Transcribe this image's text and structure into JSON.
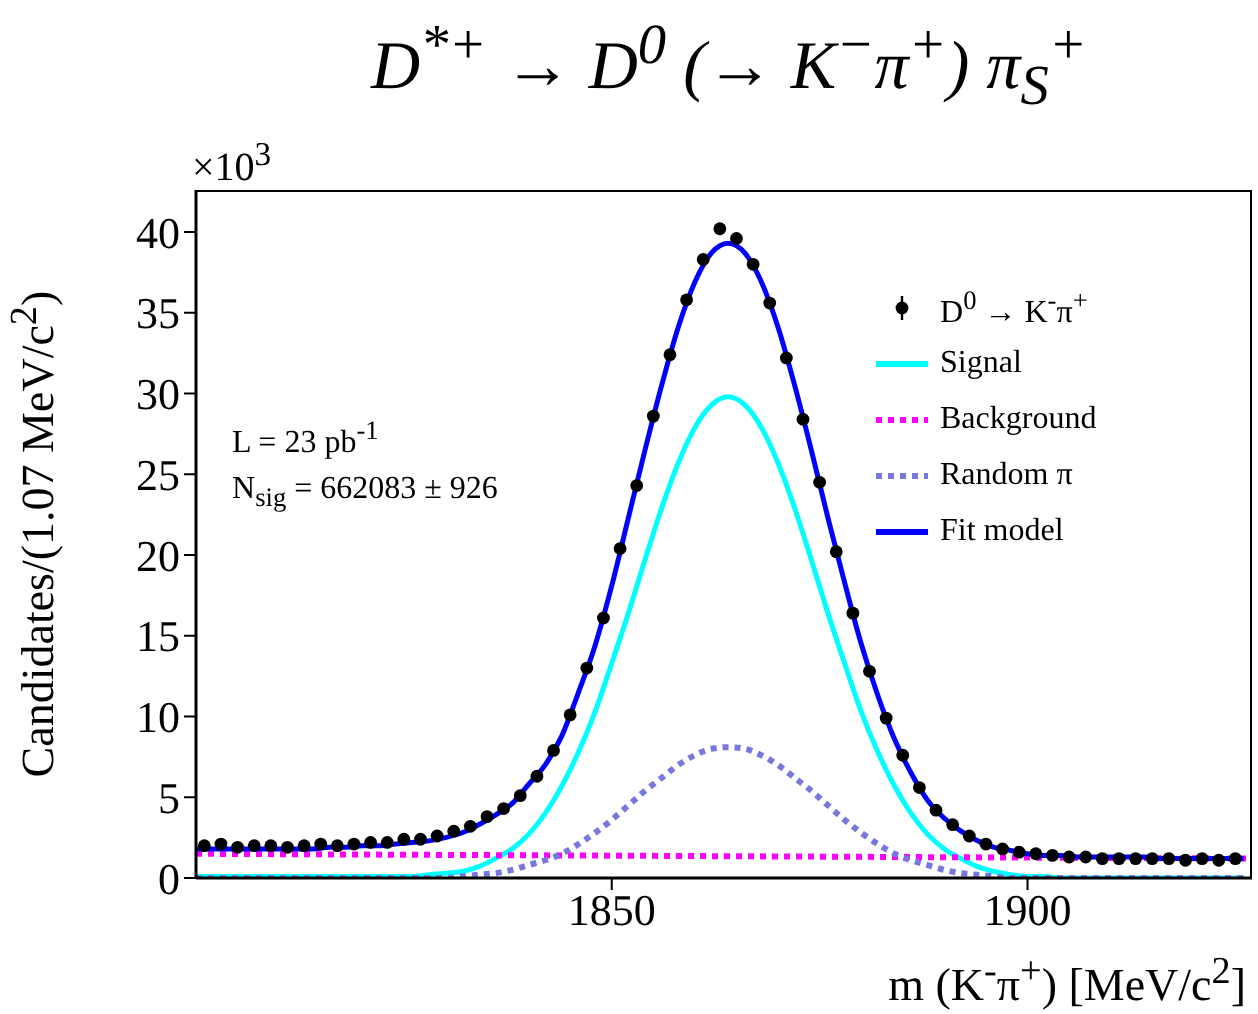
{
  "chart_data": {
    "type": "line",
    "title": "D$^{*+}$ → D$^{0}$ (→ K$^{−}$π$^{+}$) π$_{S}$$^{+}$",
    "xlabel": "m (K$^{-}$π$^{+}$) [MeV/c$^{2}$]",
    "ylabel": "Candidates/(1.07 MeV/c$^{2}$)",
    "xlim": [
      1800,
      1927
    ],
    "xticks": [
      1850,
      1900
    ],
    "ylim": [
      0,
      42.6
    ],
    "yticks": [
      0,
      5,
      10,
      15,
      20,
      25,
      30,
      35,
      40
    ],
    "grid": false,
    "legend": "top right",
    "annotations": [
      "×10$^{3}$",
      "L = 23 pb$^{-1}$",
      "N$_{sig}$ = 662083 ± 926"
    ],
    "series": [
      {
        "name": "D$^{0}$ → K$^{-}$π$^{+}$",
        "type": "scatter",
        "marker": "circle",
        "color": "#000000",
        "x": [
          1801,
          1803,
          1805,
          1807,
          1809,
          1811,
          1813,
          1815,
          1817,
          1819,
          1821,
          1823,
          1825,
          1827,
          1829,
          1831,
          1833,
          1835,
          1837,
          1839,
          1841,
          1843,
          1845,
          1847,
          1849,
          1851,
          1853,
          1855,
          1857,
          1859,
          1861,
          1863,
          1865,
          1867,
          1869,
          1871,
          1873,
          1875,
          1877,
          1879,
          1881,
          1883,
          1885,
          1887,
          1889,
          1891,
          1893,
          1895,
          1897,
          1899,
          1901,
          1903,
          1905,
          1907,
          1909,
          1911,
          1913,
          1915,
          1917,
          1919,
          1921,
          1923,
          1925
        ],
        "values": [
          2.0,
          2.1,
          1.9,
          2.0,
          2.0,
          1.9,
          2.0,
          2.1,
          2.0,
          2.1,
          2.2,
          2.2,
          2.4,
          2.4,
          2.6,
          2.9,
          3.2,
          3.8,
          4.3,
          5.1,
          6.3,
          7.9,
          10.1,
          13.0,
          16.1,
          20.4,
          24.3,
          28.6,
          32.4,
          35.8,
          38.3,
          40.2,
          39.6,
          38.0,
          35.6,
          32.2,
          28.4,
          24.5,
          20.2,
          16.4,
          12.8,
          9.9,
          7.6,
          5.6,
          4.2,
          3.3,
          2.6,
          2.1,
          1.8,
          1.6,
          1.5,
          1.4,
          1.3,
          1.3,
          1.2,
          1.2,
          1.2,
          1.2,
          1.2,
          1.1,
          1.2,
          1.1,
          1.2
        ]
      },
      {
        "name": "Signal",
        "color": "#00ffff",
        "line_style": "solid",
        "x": [
          1800,
          1802,
          1804,
          1806,
          1808,
          1810,
          1812,
          1814,
          1816,
          1818,
          1820,
          1822,
          1824,
          1826,
          1828,
          1830,
          1832,
          1834,
          1836,
          1838,
          1840,
          1842,
          1844,
          1846,
          1848,
          1850,
          1852,
          1854,
          1856,
          1858,
          1860,
          1862,
          1864,
          1866,
          1868,
          1870,
          1872,
          1874,
          1876,
          1878,
          1880,
          1882,
          1884,
          1886,
          1888,
          1890,
          1892,
          1894,
          1896,
          1898,
          1900,
          1902,
          1904,
          1906,
          1908,
          1910,
          1912,
          1914,
          1916,
          1918,
          1920,
          1922,
          1924,
          1926
        ],
        "values": [
          0.1,
          0.1,
          0.1,
          0.1,
          0.1,
          0.1,
          0.1,
          0.1,
          0.1,
          0.1,
          0.1,
          0.1,
          0.1,
          0.1,
          0.2,
          0.3,
          0.4,
          0.7,
          1.2,
          1.8,
          2.7,
          4.0,
          5.7,
          7.8,
          10.3,
          13.3,
          16.4,
          19.7,
          22.9,
          25.7,
          27.9,
          29.3,
          29.8,
          29.3,
          27.9,
          25.7,
          22.9,
          19.7,
          16.4,
          13.3,
          10.3,
          7.8,
          5.7,
          4.0,
          2.7,
          1.8,
          1.2,
          0.7,
          0.4,
          0.2,
          0.1,
          0.1,
          0,
          0,
          0,
          0,
          0,
          0,
          0,
          0,
          0,
          0,
          0,
          0
        ]
      },
      {
        "name": "Background",
        "color": "#ff00ff",
        "line_style": "dotted",
        "x": [
          1800,
          1927
        ],
        "values": [
          1.5,
          1.2
        ]
      },
      {
        "name": "Random π",
        "color": "#7777dd",
        "line_style": "dotted",
        "x": [
          1800,
          1802,
          1804,
          1806,
          1808,
          1810,
          1812,
          1814,
          1816,
          1818,
          1820,
          1822,
          1824,
          1826,
          1828,
          1830,
          1832,
          1834,
          1836,
          1838,
          1840,
          1842,
          1844,
          1846,
          1848,
          1850,
          1852,
          1854,
          1856,
          1858,
          1860,
          1862,
          1864,
          1866,
          1868,
          1870,
          1872,
          1874,
          1876,
          1878,
          1880,
          1882,
          1884,
          1886,
          1888,
          1890,
          1892,
          1894,
          1896,
          1898,
          1900,
          1902,
          1904,
          1906,
          1908,
          1910,
          1912,
          1914,
          1916,
          1918,
          1920,
          1922,
          1924,
          1926
        ],
        "values": [
          0,
          0,
          0,
          0,
          0,
          0,
          0,
          0,
          0,
          0,
          0,
          0,
          0,
          0,
          0,
          0,
          0.1,
          0.2,
          0.3,
          0.5,
          0.8,
          1.1,
          1.5,
          2.1,
          2.8,
          3.6,
          4.5,
          5.4,
          6.2,
          7.0,
          7.6,
          8.0,
          8.1,
          8.0,
          7.6,
          7.0,
          6.2,
          5.4,
          4.5,
          3.6,
          2.8,
          2.1,
          1.5,
          1.1,
          0.8,
          0.5,
          0.3,
          0.2,
          0.1,
          0,
          0,
          0,
          0,
          0,
          0,
          0,
          0,
          0,
          0,
          0,
          0,
          0,
          0,
          0
        ]
      },
      {
        "name": "Fit model",
        "color": "#0000ff",
        "line_style": "solid",
        "x": [
          1800,
          1802,
          1804,
          1806,
          1808,
          1810,
          1812,
          1814,
          1816,
          1818,
          1820,
          1822,
          1824,
          1826,
          1828,
          1830,
          1832,
          1834,
          1836,
          1838,
          1840,
          1842,
          1844,
          1846,
          1848,
          1850,
          1852,
          1854,
          1856,
          1858,
          1860,
          1862,
          1864,
          1866,
          1868,
          1870,
          1872,
          1874,
          1876,
          1878,
          1880,
          1882,
          1884,
          1886,
          1888,
          1890,
          1892,
          1894,
          1896,
          1898,
          1900,
          1902,
          1904,
          1906,
          1908,
          1910,
          1912,
          1914,
          1916,
          1918,
          1920,
          1922,
          1924,
          1926
        ],
        "values": [
          1.8,
          1.8,
          1.8,
          1.8,
          1.8,
          1.8,
          1.8,
          1.8,
          1.9,
          1.9,
          2.0,
          2.0,
          2.1,
          2.2,
          2.3,
          2.5,
          2.8,
          3.3,
          3.9,
          4.6,
          5.8,
          7.0,
          8.8,
          11.5,
          14.4,
          18.1,
          22.3,
          26.5,
          30.5,
          34.1,
          36.9,
          38.7,
          39.3,
          38.7,
          36.9,
          34.1,
          30.5,
          26.5,
          22.3,
          18.3,
          14.5,
          11.3,
          8.6,
          6.5,
          4.8,
          3.7,
          2.9,
          2.3,
          1.9,
          1.7,
          1.5,
          1.4,
          1.4,
          1.3,
          1.3,
          1.3,
          1.3,
          1.3,
          1.2,
          1.2,
          1.2,
          1.2,
          1.2,
          1.2
        ]
      }
    ]
  }
}
